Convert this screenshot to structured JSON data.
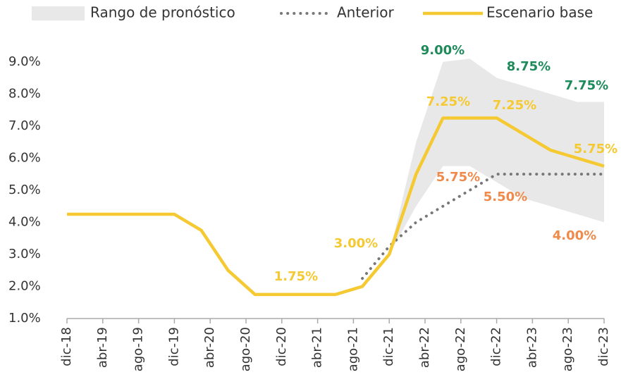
{
  "chart_data": {
    "type": "line",
    "xlim": [
      0,
      60
    ],
    "xticks": [
      {
        "value": 0,
        "label": "dic-18"
      },
      {
        "value": 4,
        "label": "abr-19"
      },
      {
        "value": 8,
        "label": "ago-19"
      },
      {
        "value": 12,
        "label": "dic-19"
      },
      {
        "value": 16,
        "label": "abr-20"
      },
      {
        "value": 20,
        "label": "ago-20"
      },
      {
        "value": 24,
        "label": "dic-20"
      },
      {
        "value": 28,
        "label": "abr-21"
      },
      {
        "value": 32,
        "label": "ago-21"
      },
      {
        "value": 36,
        "label": "dic-21"
      },
      {
        "value": 40,
        "label": "abr-22"
      },
      {
        "value": 44,
        "label": "ago-22"
      },
      {
        "value": 48,
        "label": "dic-22"
      },
      {
        "value": 52,
        "label": "abr-23"
      },
      {
        "value": 56,
        "label": "ago-23"
      },
      {
        "value": 60,
        "label": "dic-23"
      }
    ],
    "ylim": [
      1,
      9.5
    ],
    "yticks": [
      {
        "value": 1,
        "label": "1.0%"
      },
      {
        "value": 2,
        "label": "2.0%"
      },
      {
        "value": 3,
        "label": "3.0%"
      },
      {
        "value": 4,
        "label": "4.0%"
      },
      {
        "value": 5,
        "label": "5.0%"
      },
      {
        "value": 6,
        "label": "6.0%"
      },
      {
        "value": 7,
        "label": "7.0%"
      },
      {
        "value": 8,
        "label": "8.0%"
      },
      {
        "value": 9,
        "label": "9.0%"
      }
    ],
    "series": [
      {
        "name": "Rango de pronóstico",
        "kind": "band",
        "color": "#e8e8e8",
        "x": [
          36,
          39,
          42,
          45,
          48,
          51,
          54,
          57,
          60
        ],
        "upper": [
          3.0,
          6.5,
          9.0,
          9.1,
          8.5,
          8.25,
          8.0,
          7.75,
          7.75
        ],
        "lower": [
          3.0,
          4.5,
          5.75,
          5.75,
          5.25,
          4.75,
          4.5,
          4.25,
          4.0
        ]
      },
      {
        "name": "Anterior",
        "kind": "dotted",
        "color": "#777777",
        "x": [
          33,
          36,
          39,
          42,
          45,
          48,
          51,
          54,
          57,
          60
        ],
        "values": [
          2.25,
          3.25,
          4.0,
          4.5,
          5.0,
          5.5,
          5.5,
          5.5,
          5.5,
          5.5
        ]
      },
      {
        "name": "Escenario base",
        "kind": "solid",
        "color": "#f5c932",
        "x": [
          0,
          3,
          6,
          9,
          12,
          15,
          18,
          21,
          24,
          27,
          30,
          33,
          36,
          39,
          42,
          45,
          48,
          51,
          54,
          57,
          60
        ],
        "values": [
          4.25,
          4.25,
          4.25,
          4.25,
          4.25,
          3.75,
          2.5,
          1.75,
          1.75,
          1.75,
          1.75,
          2.0,
          3.0,
          5.5,
          7.25,
          7.25,
          7.25,
          6.75,
          6.25,
          6.0,
          5.75
        ]
      }
    ],
    "annotations": [
      {
        "text": "9.00%",
        "color": "#1e8a5a"
      },
      {
        "text": "8.75%",
        "color": "#1e8a5a"
      },
      {
        "text": "7.75%",
        "color": "#1e8a5a"
      },
      {
        "text": "7.25%",
        "color": "#f5c932"
      },
      {
        "text": "7.25%",
        "color": "#f5c932"
      },
      {
        "text": "5.75%",
        "color": "#f5c932"
      },
      {
        "text": "3.00%",
        "color": "#f5c932"
      },
      {
        "text": "1.75%",
        "color": "#f5c932"
      },
      {
        "text": "5.75%",
        "color": "#f08a4b"
      },
      {
        "text": "5.50%",
        "color": "#f08a4b"
      },
      {
        "text": "4.00%",
        "color": "#f08a4b"
      }
    ]
  }
}
